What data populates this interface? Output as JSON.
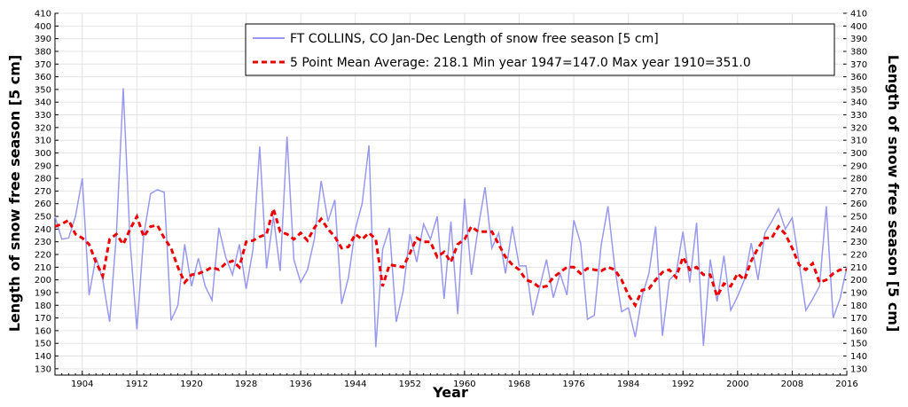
{
  "chart_data": {
    "type": "line",
    "xlabel": "Year",
    "ylabel": "Length of snow free season [5 cm]",
    "xlim": [
      1900,
      2016
    ],
    "ylim": [
      125,
      410
    ],
    "x_ticks": [
      1904,
      1912,
      1920,
      1928,
      1936,
      1944,
      1952,
      1960,
      1968,
      1976,
      1984,
      1992,
      2000,
      2008,
      2016
    ],
    "y_ticks": [
      130,
      140,
      150,
      160,
      170,
      180,
      190,
      200,
      210,
      220,
      230,
      240,
      250,
      260,
      270,
      280,
      290,
      300,
      310,
      320,
      330,
      340,
      350,
      360,
      370,
      380,
      390,
      400,
      410
    ],
    "grid": true,
    "legend_position": "top-right",
    "colors": {
      "annual": "#9999ee",
      "mean": "#ee0000"
    },
    "series": [
      {
        "name": "FT COLLINS, CO  Jan-Dec  Length of snow free season [5 cm]",
        "style": "solid",
        "x": [
          1900,
          1901,
          1902,
          1903,
          1904,
          1905,
          1906,
          1907,
          1908,
          1909,
          1910,
          1911,
          1912,
          1913,
          1914,
          1915,
          1916,
          1917,
          1918,
          1919,
          1920,
          1921,
          1922,
          1923,
          1924,
          1925,
          1926,
          1927,
          1928,
          1929,
          1930,
          1931,
          1932,
          1933,
          1934,
          1935,
          1936,
          1937,
          1938,
          1939,
          1940,
          1941,
          1942,
          1943,
          1944,
          1945,
          1946,
          1947,
          1948,
          1949,
          1950,
          1951,
          1952,
          1953,
          1954,
          1955,
          1956,
          1957,
          1958,
          1959,
          1960,
          1961,
          1962,
          1963,
          1964,
          1965,
          1966,
          1967,
          1968,
          1969,
          1970,
          1971,
          1972,
          1973,
          1974,
          1975,
          1976,
          1977,
          1978,
          1979,
          1980,
          1981,
          1982,
          1983,
          1984,
          1985,
          1986,
          1987,
          1988,
          1989,
          1990,
          1991,
          1992,
          1993,
          1994,
          1995,
          1996,
          1997,
          1998,
          1999,
          2000,
          2001,
          2002,
          2003,
          2004,
          2005,
          2006,
          2007,
          2008,
          2009,
          2010,
          2011,
          2012,
          2013,
          2014,
          2015,
          2016
        ],
        "values": [
          250,
          232,
          233,
          250,
          280,
          188,
          218,
          200,
          167,
          236,
          351,
          230,
          161,
          235,
          268,
          271,
          269,
          168,
          180,
          228,
          195,
          217,
          195,
          184,
          241,
          218,
          204,
          228,
          193,
          224,
          305,
          209,
          250,
          207,
          313,
          216,
          198,
          208,
          232,
          278,
          246,
          263,
          181,
          202,
          240,
          260,
          306,
          147,
          224,
          241,
          167,
          191,
          236,
          214,
          244,
          232,
          250,
          185,
          246,
          173,
          264,
          204,
          241,
          273,
          225,
          237,
          205,
          242,
          211,
          211,
          172,
          194,
          216,
          186,
          205,
          188,
          247,
          229,
          169,
          172,
          227,
          258,
          210,
          175,
          178,
          155,
          187,
          205,
          242,
          156,
          200,
          205,
          238,
          198,
          245,
          148,
          216,
          183,
          219,
          176,
          187,
          200,
          229,
          200,
          237,
          246,
          256,
          240,
          249,
          214,
          176,
          185,
          195,
          258,
          170,
          185,
          210
        ]
      },
      {
        "name": "5 Point Mean  Average: 218.1  Min year 1947=147.0  Max year 1910=351.0",
        "style": "dashed",
        "x": [
          1900,
          1901,
          1902,
          1903,
          1904,
          1905,
          1906,
          1907,
          1908,
          1909,
          1910,
          1911,
          1912,
          1913,
          1914,
          1915,
          1916,
          1917,
          1918,
          1919,
          1920,
          1921,
          1922,
          1923,
          1924,
          1925,
          1926,
          1927,
          1928,
          1929,
          1930,
          1931,
          1932,
          1933,
          1934,
          1935,
          1936,
          1937,
          1938,
          1939,
          1940,
          1941,
          1942,
          1943,
          1944,
          1945,
          1946,
          1947,
          1948,
          1949,
          1950,
          1951,
          1952,
          1953,
          1954,
          1955,
          1956,
          1957,
          1958,
          1959,
          1960,
          1961,
          1962,
          1963,
          1964,
          1965,
          1966,
          1967,
          1968,
          1969,
          1970,
          1971,
          1972,
          1973,
          1974,
          1975,
          1976,
          1977,
          1978,
          1979,
          1980,
          1981,
          1982,
          1983,
          1984,
          1985,
          1986,
          1987,
          1988,
          1989,
          1990,
          1991,
          1992,
          1993,
          1994,
          1995,
          1996,
          1997,
          1998,
          1999,
          2000,
          2001,
          2002,
          2003,
          2004,
          2005,
          2006,
          2007,
          2008,
          2009,
          2010,
          2011,
          2012,
          2013,
          2014,
          2015,
          2016
        ],
        "values": [
          242,
          244,
          247,
          236,
          233,
          228,
          214,
          203,
          232,
          236,
          228,
          240,
          250,
          234,
          242,
          243,
          233,
          225,
          210,
          198,
          204,
          205,
          207,
          210,
          208,
          213,
          215,
          210,
          230,
          231,
          234,
          236,
          256,
          238,
          236,
          232,
          237,
          231,
          241,
          248,
          240,
          234,
          225,
          226,
          236,
          232,
          237,
          232,
          195,
          212,
          211,
          210,
          221,
          233,
          230,
          230,
          218,
          222,
          214,
          228,
          232,
          242,
          238,
          238,
          238,
          228,
          218,
          212,
          208,
          200,
          198,
          194,
          195,
          202,
          206,
          210,
          210,
          205,
          209,
          208,
          207,
          210,
          208,
          200,
          188,
          180,
          192,
          193,
          200,
          206,
          208,
          202,
          218,
          208,
          210,
          204,
          204,
          187,
          197,
          195,
          205,
          200,
          215,
          225,
          233,
          233,
          242,
          236,
          225,
          212,
          208,
          213,
          198,
          200,
          205,
          208,
          208
        ]
      }
    ]
  }
}
